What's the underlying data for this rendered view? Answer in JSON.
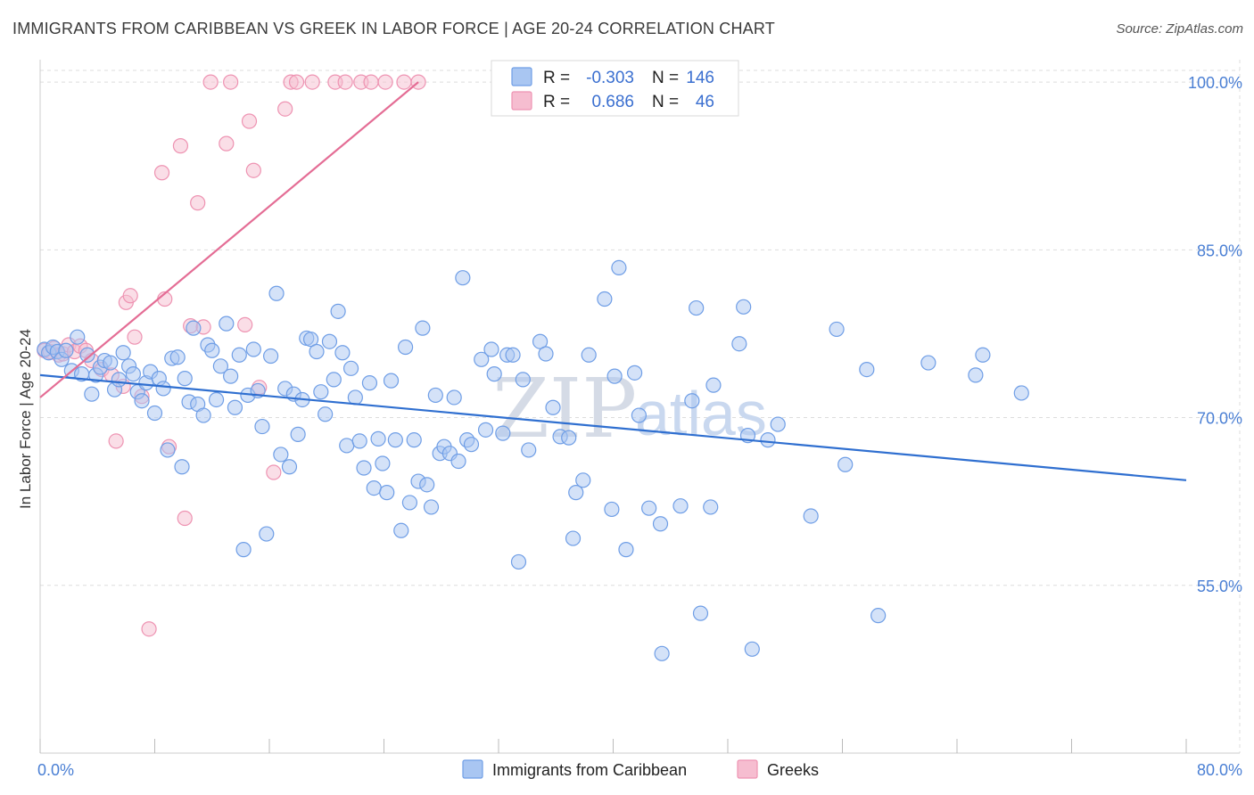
{
  "title": "IMMIGRANTS FROM CARIBBEAN VS GREEK IN LABOR FORCE | AGE 20-24 CORRELATION CHART",
  "source": "Source: ZipAtlas.com",
  "watermark": {
    "zip": "ZIP",
    "atlas": "atlas"
  },
  "colors": {
    "blue_fill": "#a9c6f2",
    "blue_stroke": "#6f9ee6",
    "blue_line": "#2f6fd0",
    "pink_fill": "#f6bdd0",
    "pink_stroke": "#ee93b2",
    "pink_line": "#e46d95",
    "tick_text": "#4a7fd4",
    "grid": "#dddddd"
  },
  "legend": {
    "rows": [
      {
        "r_label": "R =",
        "r_value": "-0.303",
        "n_label": "N =",
        "n_value": "146"
      },
      {
        "r_label": "R =",
        "r_value": "0.686",
        "n_label": "N =",
        "n_value": "46"
      }
    ]
  },
  "bottom_legend": [
    "Immigrants from Caribbean",
    "Greeks"
  ],
  "chart_data": {
    "type": "scatter",
    "title": "IMMIGRANTS FROM CARIBBEAN VS GREEK IN LABOR FORCE | AGE 20-24 CORRELATION CHART",
    "xlabel": "",
    "ylabel": "In Labor Force | Age 20-24",
    "xlim": [
      0,
      80
    ],
    "ylim": [
      40,
      102
    ],
    "x_tick_labels": [
      "0.0%",
      "80.0%"
    ],
    "y_ticks": [
      55,
      70,
      85,
      100
    ],
    "y_tick_labels": [
      "55.0%",
      "70.0%",
      "85.0%",
      "100.0%"
    ],
    "grid": true,
    "legend_placement": "top-center",
    "series": [
      {
        "name": "Immigrants from Caribbean",
        "color": "#a9c6f2",
        "trend": {
          "x": [
            0,
            80
          ],
          "y": [
            73.8,
            64.4
          ]
        },
        "points": [
          [
            0.3,
            76.1
          ],
          [
            0.6,
            75.8
          ],
          [
            0.9,
            76.3
          ],
          [
            1.2,
            75.9
          ],
          [
            1.5,
            75.2
          ],
          [
            1.8,
            76.0
          ],
          [
            2.2,
            74.2
          ],
          [
            2.6,
            77.2
          ],
          [
            2.9,
            73.9
          ],
          [
            3.3,
            75.6
          ],
          [
            3.6,
            72.1
          ],
          [
            3.9,
            73.8
          ],
          [
            4.2,
            74.5
          ],
          [
            4.5,
            75.1
          ],
          [
            4.9,
            74.9
          ],
          [
            5.2,
            72.5
          ],
          [
            5.5,
            73.4
          ],
          [
            5.8,
            75.8
          ],
          [
            6.2,
            74.6
          ],
          [
            6.5,
            73.9
          ],
          [
            6.8,
            72.3
          ],
          [
            7.1,
            71.5
          ],
          [
            7.4,
            73.1
          ],
          [
            7.7,
            74.1
          ],
          [
            8.0,
            70.4
          ],
          [
            8.3,
            73.5
          ],
          [
            8.6,
            72.6
          ],
          [
            8.9,
            67.1
          ],
          [
            9.2,
            75.3
          ],
          [
            9.6,
            75.4
          ],
          [
            9.9,
            65.6
          ],
          [
            10.1,
            73.5
          ],
          [
            10.4,
            71.4
          ],
          [
            10.7,
            78.0
          ],
          [
            11.0,
            71.2
          ],
          [
            11.4,
            70.2
          ],
          [
            11.7,
            76.5
          ],
          [
            12.0,
            76.0
          ],
          [
            12.3,
            71.6
          ],
          [
            12.6,
            74.6
          ],
          [
            13.0,
            78.4
          ],
          [
            13.3,
            73.7
          ],
          [
            13.6,
            70.9
          ],
          [
            13.9,
            75.6
          ],
          [
            14.2,
            58.2
          ],
          [
            14.5,
            72.0
          ],
          [
            14.9,
            76.1
          ],
          [
            15.2,
            72.4
          ],
          [
            15.5,
            69.2
          ],
          [
            15.8,
            59.6
          ],
          [
            16.1,
            75.5
          ],
          [
            16.5,
            81.1
          ],
          [
            16.8,
            66.7
          ],
          [
            17.1,
            72.6
          ],
          [
            17.4,
            65.6
          ],
          [
            17.7,
            72.1
          ],
          [
            18.0,
            68.5
          ],
          [
            18.3,
            71.6
          ],
          [
            18.6,
            77.1
          ],
          [
            18.9,
            77.0
          ],
          [
            19.3,
            75.9
          ],
          [
            19.6,
            72.3
          ],
          [
            19.9,
            70.3
          ],
          [
            20.2,
            76.8
          ],
          [
            20.5,
            73.4
          ],
          [
            20.8,
            79.5
          ],
          [
            21.1,
            75.8
          ],
          [
            21.4,
            67.5
          ],
          [
            21.7,
            74.4
          ],
          [
            22.0,
            71.8
          ],
          [
            22.3,
            67.9
          ],
          [
            22.6,
            65.5
          ],
          [
            23.0,
            73.1
          ],
          [
            23.3,
            63.7
          ],
          [
            23.6,
            68.1
          ],
          [
            23.9,
            65.9
          ],
          [
            24.2,
            63.3
          ],
          [
            24.5,
            73.3
          ],
          [
            24.8,
            68.0
          ],
          [
            25.2,
            59.9
          ],
          [
            25.5,
            76.3
          ],
          [
            25.8,
            62.4
          ],
          [
            26.1,
            68.0
          ],
          [
            26.4,
            64.3
          ],
          [
            26.7,
            78.0
          ],
          [
            27.0,
            64.0
          ],
          [
            27.3,
            62.0
          ],
          [
            27.6,
            72.0
          ],
          [
            27.9,
            66.8
          ],
          [
            28.2,
            67.4
          ],
          [
            28.6,
            66.8
          ],
          [
            28.9,
            71.8
          ],
          [
            29.2,
            66.1
          ],
          [
            29.5,
            82.5
          ],
          [
            29.8,
            68.0
          ],
          [
            30.1,
            67.6
          ],
          [
            30.8,
            75.2
          ],
          [
            31.1,
            68.9
          ],
          [
            31.5,
            76.1
          ],
          [
            31.7,
            73.9
          ],
          [
            32.3,
            68.6
          ],
          [
            32.6,
            75.6
          ],
          [
            33.0,
            75.6
          ],
          [
            33.4,
            57.1
          ],
          [
            33.7,
            73.4
          ],
          [
            34.1,
            67.1
          ],
          [
            34.9,
            76.8
          ],
          [
            35.3,
            75.7
          ],
          [
            35.8,
            70.9
          ],
          [
            36.3,
            68.3
          ],
          [
            36.9,
            68.2
          ],
          [
            37.2,
            59.2
          ],
          [
            37.4,
            63.3
          ],
          [
            37.9,
            64.4
          ],
          [
            38.3,
            75.6
          ],
          [
            39.4,
            80.6
          ],
          [
            39.9,
            61.8
          ],
          [
            40.1,
            73.7
          ],
          [
            40.4,
            83.4
          ],
          [
            40.9,
            58.2
          ],
          [
            41.5,
            74.0
          ],
          [
            41.8,
            70.2
          ],
          [
            42.5,
            61.9
          ],
          [
            43.3,
            60.5
          ],
          [
            43.4,
            48.9
          ],
          [
            44.7,
            62.1
          ],
          [
            45.5,
            71.5
          ],
          [
            45.8,
            79.8
          ],
          [
            46.1,
            52.5
          ],
          [
            46.8,
            62.0
          ],
          [
            47.0,
            72.9
          ],
          [
            48.8,
            76.6
          ],
          [
            49.1,
            79.9
          ],
          [
            49.4,
            68.4
          ],
          [
            49.7,
            49.3
          ],
          [
            50.8,
            68.0
          ],
          [
            51.5,
            69.4
          ],
          [
            53.8,
            61.2
          ],
          [
            55.6,
            77.9
          ],
          [
            56.2,
            65.8
          ],
          [
            57.7,
            74.3
          ],
          [
            58.5,
            52.3
          ],
          [
            62.0,
            74.9
          ],
          [
            65.3,
            73.8
          ],
          [
            65.8,
            75.6
          ],
          [
            68.5,
            72.2
          ]
        ]
      },
      {
        "name": "Greeks",
        "color": "#f6bdd0",
        "trend": {
          "x": [
            0,
            26.4
          ],
          "y": [
            71.8,
            100.0
          ]
        },
        "points": [
          [
            0.3,
            76.0
          ],
          [
            0.7,
            75.9
          ],
          [
            1.0,
            76.2
          ],
          [
            1.3,
            75.6
          ],
          [
            1.6,
            75.7
          ],
          [
            2.0,
            76.5
          ],
          [
            2.4,
            75.9
          ],
          [
            2.8,
            76.4
          ],
          [
            3.2,
            76.0
          ],
          [
            3.6,
            75.1
          ],
          [
            4.3,
            74.3
          ],
          [
            5.0,
            73.8
          ],
          [
            5.3,
            67.9
          ],
          [
            5.8,
            72.8
          ],
          [
            6.0,
            80.3
          ],
          [
            6.3,
            80.9
          ],
          [
            6.6,
            77.2
          ],
          [
            7.1,
            71.9
          ],
          [
            7.6,
            51.1
          ],
          [
            8.5,
            91.9
          ],
          [
            8.7,
            80.6
          ],
          [
            9.0,
            67.4
          ],
          [
            9.8,
            94.3
          ],
          [
            10.1,
            61.0
          ],
          [
            10.5,
            78.2
          ],
          [
            11.0,
            89.2
          ],
          [
            11.4,
            78.1
          ],
          [
            11.9,
            100.0
          ],
          [
            13.0,
            94.5
          ],
          [
            13.3,
            100.0
          ],
          [
            14.3,
            78.3
          ],
          [
            14.6,
            96.5
          ],
          [
            14.9,
            92.1
          ],
          [
            15.3,
            72.7
          ],
          [
            16.3,
            65.1
          ],
          [
            17.1,
            97.6
          ],
          [
            17.5,
            100.0
          ],
          [
            17.9,
            100.0
          ],
          [
            19.0,
            100.0
          ],
          [
            20.6,
            100.0
          ],
          [
            21.3,
            100.0
          ],
          [
            22.4,
            100.0
          ],
          [
            23.1,
            100.0
          ],
          [
            24.1,
            100.0
          ],
          [
            25.4,
            100.0
          ],
          [
            26.4,
            100.0
          ]
        ]
      }
    ]
  }
}
